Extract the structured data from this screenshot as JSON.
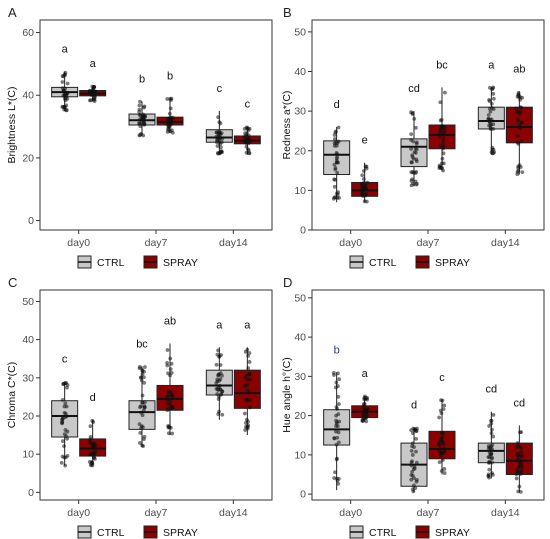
{
  "legend": {
    "title": "",
    "items": [
      {
        "name": "CTRL",
        "color": "#c8c8c8"
      },
      {
        "name": "SPRAY",
        "color": "#8b0000"
      }
    ]
  },
  "chart_data": [
    {
      "type": "box",
      "panel_label": "A",
      "title": "",
      "xlabel": "",
      "ylabel": "Brightness L*(C)",
      "ylim": [
        -3,
        64
      ],
      "yticks": [
        0,
        20,
        40,
        60
      ],
      "grid": false,
      "legend_placement": "bottom",
      "categories": [
        "day0",
        "day7",
        "day14"
      ],
      "series": [
        {
          "name": "CTRL",
          "color": "#c8c8c8",
          "boxes": [
            {
              "category": "day0",
              "min": 35,
              "q1": 39.5,
              "median": 41,
              "q3": 42.5,
              "max": 47.5,
              "letter": "a"
            },
            {
              "category": "day7",
              "min": 27,
              "q1": 30.5,
              "median": 32,
              "q3": 34,
              "max": 38,
              "letter": "b"
            },
            {
              "category": "day14",
              "min": 21,
              "q1": 25,
              "median": 26.5,
              "q3": 29,
              "max": 35,
              "letter": "c"
            }
          ]
        },
        {
          "name": "SPRAY",
          "color": "#8b0000",
          "boxes": [
            {
              "category": "day0",
              "min": 38,
              "q1": 39.8,
              "median": 40.5,
              "q3": 41.5,
              "max": 43,
              "letter": "a"
            },
            {
              "category": "day7",
              "min": 28,
              "q1": 30.5,
              "median": 31.5,
              "q3": 33,
              "max": 39,
              "letter": "b"
            },
            {
              "category": "day14",
              "min": 21,
              "q1": 24.5,
              "median": 25.5,
              "q3": 27,
              "max": 30,
              "letter": "c"
            }
          ]
        }
      ]
    },
    {
      "type": "box",
      "panel_label": "B",
      "title": "",
      "xlabel": "",
      "ylabel": "Redness a*(C)",
      "ylim": [
        0,
        53
      ],
      "yticks": [
        0,
        10,
        20,
        30,
        40,
        50
      ],
      "grid": false,
      "legend_placement": "bottom",
      "categories": [
        "day0",
        "day7",
        "day14"
      ],
      "series": [
        {
          "name": "CTRL",
          "color": "#c8c8c8",
          "boxes": [
            {
              "category": "day0",
              "min": 7,
              "q1": 14,
              "median": 19,
              "q3": 22.5,
              "max": 26,
              "letter": "d"
            },
            {
              "category": "day7",
              "min": 11,
              "q1": 16,
              "median": 21,
              "q3": 23,
              "max": 30,
              "letter": "cd"
            },
            {
              "category": "day14",
              "min": 19,
              "q1": 25.5,
              "median": 27.5,
              "q3": 31,
              "max": 36,
              "letter": "a"
            }
          ]
        },
        {
          "name": "SPRAY",
          "color": "#8b0000",
          "boxes": [
            {
              "category": "day0",
              "min": 7,
              "q1": 8.5,
              "median": 10,
              "q3": 12,
              "max": 17,
              "letter": "e"
            },
            {
              "category": "day7",
              "min": 15,
              "q1": 20.5,
              "median": 24,
              "q3": 26.5,
              "max": 36,
              "letter": "bc"
            },
            {
              "category": "day14",
              "min": 14,
              "q1": 22,
              "median": 26,
              "q3": 31,
              "max": 35,
              "letter": "ab"
            }
          ]
        }
      ]
    },
    {
      "type": "box",
      "panel_label": "C",
      "title": "",
      "xlabel": "",
      "ylabel": "Chroma C*(C)",
      "ylim": [
        -2,
        53
      ],
      "yticks": [
        0,
        10,
        20,
        30,
        40,
        50
      ],
      "grid": false,
      "legend_placement": "bottom",
      "categories": [
        "day0",
        "day7",
        "day14"
      ],
      "series": [
        {
          "name": "CTRL",
          "color": "#c8c8c8",
          "boxes": [
            {
              "category": "day0",
              "min": 7,
              "q1": 14.5,
              "median": 20,
              "q3": 24,
              "max": 29,
              "letter": "c"
            },
            {
              "category": "day7",
              "min": 12,
              "q1": 16.5,
              "median": 21,
              "q3": 24,
              "max": 33,
              "letter": "bc"
            },
            {
              "category": "day14",
              "min": 19,
              "q1": 25.5,
              "median": 28,
              "q3": 32,
              "max": 38,
              "letter": "a"
            }
          ]
        },
        {
          "name": "SPRAY",
          "color": "#8b0000",
          "boxes": [
            {
              "category": "day0",
              "min": 7,
              "q1": 9.5,
              "median": 11.5,
              "q3": 14,
              "max": 19,
              "letter": "d"
            },
            {
              "category": "day7",
              "min": 15,
              "q1": 21.5,
              "median": 24.5,
              "q3": 28,
              "max": 39,
              "letter": "ab"
            },
            {
              "category": "day14",
              "min": 15,
              "q1": 22,
              "median": 26,
              "q3": 32,
              "max": 38,
              "letter": "a"
            }
          ]
        }
      ]
    },
    {
      "type": "box",
      "panel_label": "D",
      "title": "",
      "xlabel": "",
      "ylabel": "Hue angle h°(C)",
      "ylim": [
        -1.5,
        52
      ],
      "yticks": [
        0,
        10,
        20,
        30,
        40,
        50
      ],
      "grid": false,
      "legend_placement": "bottom",
      "categories": [
        "day0",
        "day7",
        "day14"
      ],
      "series": [
        {
          "name": "CTRL",
          "color": "#c8c8c8",
          "boxes": [
            {
              "category": "day0",
              "min": 1,
              "q1": 12.5,
              "median": 16.5,
              "q3": 21.5,
              "max": 31,
              "letter": "b"
            },
            {
              "category": "day7",
              "min": 0.5,
              "q1": 2,
              "median": 7.5,
              "q3": 13,
              "max": 17,
              "letter": "d"
            },
            {
              "category": "day14",
              "min": 4,
              "q1": 8,
              "median": 11,
              "q3": 13,
              "max": 21,
              "letter": "cd"
            }
          ]
        },
        {
          "name": "SPRAY",
          "color": "#8b0000",
          "boxes": [
            {
              "category": "day0",
              "min": 18.5,
              "q1": 19.5,
              "median": 21,
              "q3": 22.5,
              "max": 25,
              "letter": "a"
            },
            {
              "category": "day7",
              "min": 5,
              "q1": 9,
              "median": 11.5,
              "q3": 16,
              "max": 24,
              "letter": "c"
            },
            {
              "category": "day14",
              "min": 0.5,
              "q1": 5,
              "median": 8.5,
              "q3": 13,
              "max": 17.5,
              "letter": "cd"
            }
          ]
        }
      ]
    }
  ]
}
